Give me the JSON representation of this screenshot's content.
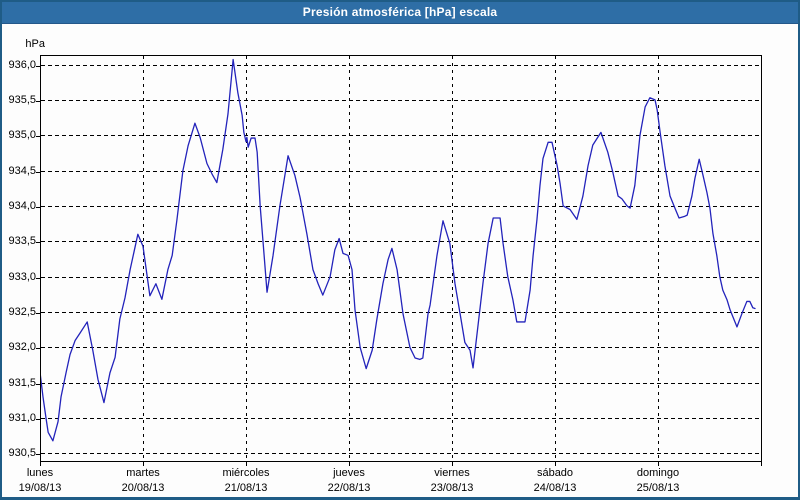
{
  "window": {
    "title": "Presión atmosférica [hPa] escala"
  },
  "colors": {
    "titlebar": "#2e6ea6",
    "frame": "#1f5c86",
    "line": "#2323bb",
    "grid": "#000000",
    "plot_border": "#000000"
  },
  "chart_data": {
    "type": "line",
    "title": "Presión atmosférica [hPa] escala",
    "ylabel": "hPa",
    "ylim": [
      930.5,
      936.0
    ],
    "ytick_step": 0.5,
    "ytick_labels": [
      "936,0",
      "935,5",
      "935,0",
      "934,5",
      "934,0",
      "933,5",
      "933,0",
      "932,5",
      "932,0",
      "931,5",
      "931,0",
      "930,5"
    ],
    "grid": true,
    "legend_position": "none",
    "x_unit": "hours since Monday 00:00",
    "xlim": [
      0,
      168
    ],
    "x_day_ticks_hours": [
      0,
      24,
      48,
      72,
      96,
      120,
      144,
      168
    ],
    "x_labels": [
      {
        "day": "lunes",
        "date": "19/08/13"
      },
      {
        "day": "martes",
        "date": "20/08/13"
      },
      {
        "day": "miércoles",
        "date": "21/08/13"
      },
      {
        "day": "jueves",
        "date": "22/08/13"
      },
      {
        "day": "viernes",
        "date": "23/08/13"
      },
      {
        "day": "sábado",
        "date": "24/08/13"
      },
      {
        "day": "domingo",
        "date": "25/08/13"
      }
    ],
    "series": [
      {
        "name": "Presión atmosférica",
        "color": "#2323bb",
        "points": [
          [
            0.0,
            931.65
          ],
          [
            0.7,
            931.3
          ],
          [
            1.4,
            931.0
          ],
          [
            1.9,
            930.8
          ],
          [
            3.0,
            930.68
          ],
          [
            4.2,
            930.95
          ],
          [
            4.9,
            931.3
          ],
          [
            6.1,
            931.65
          ],
          [
            7.0,
            931.9
          ],
          [
            8.2,
            932.1
          ],
          [
            9.3,
            932.2
          ],
          [
            11.0,
            932.36
          ],
          [
            12.3,
            931.96
          ],
          [
            13.5,
            931.55
          ],
          [
            14.9,
            931.22
          ],
          [
            16.3,
            931.64
          ],
          [
            17.5,
            931.86
          ],
          [
            18.6,
            932.4
          ],
          [
            19.8,
            932.7
          ],
          [
            21.0,
            933.1
          ],
          [
            21.9,
            933.35
          ],
          [
            22.8,
            933.6
          ],
          [
            24.0,
            933.43
          ],
          [
            25.6,
            932.73
          ],
          [
            27.0,
            932.9
          ],
          [
            28.4,
            932.68
          ],
          [
            29.8,
            933.1
          ],
          [
            30.8,
            933.3
          ],
          [
            31.9,
            933.8
          ],
          [
            33.3,
            934.5
          ],
          [
            34.5,
            934.85
          ],
          [
            36.1,
            935.17
          ],
          [
            37.3,
            934.97
          ],
          [
            38.9,
            934.6
          ],
          [
            40.1,
            934.45
          ],
          [
            41.2,
            934.33
          ],
          [
            42.6,
            934.8
          ],
          [
            43.8,
            935.3
          ],
          [
            45.0,
            936.07
          ],
          [
            46.1,
            935.6
          ],
          [
            47.1,
            935.28
          ],
          [
            47.5,
            935.04
          ],
          [
            48.0,
            934.91
          ],
          [
            48.2,
            934.97
          ],
          [
            48.5,
            934.83
          ],
          [
            49.2,
            934.96
          ],
          [
            50.1,
            934.96
          ],
          [
            50.6,
            934.76
          ],
          [
            51.3,
            934.0
          ],
          [
            52.0,
            933.47
          ],
          [
            52.9,
            932.78
          ],
          [
            54.3,
            933.3
          ],
          [
            55.9,
            934.0
          ],
          [
            57.8,
            934.71
          ],
          [
            59.4,
            934.43
          ],
          [
            60.6,
            934.12
          ],
          [
            62.2,
            933.6
          ],
          [
            63.6,
            933.1
          ],
          [
            64.8,
            932.9
          ],
          [
            65.9,
            932.74
          ],
          [
            67.6,
            933.0
          ],
          [
            68.7,
            933.38
          ],
          [
            69.7,
            933.54
          ],
          [
            70.6,
            933.33
          ],
          [
            71.8,
            933.3
          ],
          [
            72.7,
            933.1
          ],
          [
            73.4,
            932.53
          ],
          [
            74.6,
            932.0
          ],
          [
            76.0,
            931.7
          ],
          [
            77.4,
            931.96
          ],
          [
            78.5,
            932.4
          ],
          [
            79.9,
            932.9
          ],
          [
            81.1,
            933.24
          ],
          [
            82.0,
            933.4
          ],
          [
            83.2,
            933.1
          ],
          [
            84.6,
            932.47
          ],
          [
            86.2,
            932.0
          ],
          [
            87.4,
            931.85
          ],
          [
            88.5,
            931.83
          ],
          [
            89.2,
            931.85
          ],
          [
            90.4,
            932.47
          ],
          [
            90.9,
            932.6
          ],
          [
            92.5,
            933.3
          ],
          [
            93.9,
            933.79
          ],
          [
            95.5,
            933.47
          ],
          [
            96.7,
            932.9
          ],
          [
            97.9,
            932.47
          ],
          [
            99.0,
            932.07
          ],
          [
            100.2,
            931.96
          ],
          [
            100.9,
            931.71
          ],
          [
            102.1,
            932.33
          ],
          [
            103.2,
            932.9
          ],
          [
            104.4,
            933.47
          ],
          [
            105.6,
            933.83
          ],
          [
            107.2,
            933.83
          ],
          [
            107.9,
            933.47
          ],
          [
            109.0,
            933.0
          ],
          [
            110.2,
            932.67
          ],
          [
            111.1,
            932.36
          ],
          [
            113.0,
            932.36
          ],
          [
            114.2,
            932.81
          ],
          [
            114.9,
            933.3
          ],
          [
            115.8,
            933.81
          ],
          [
            116.5,
            934.29
          ],
          [
            117.2,
            934.67
          ],
          [
            118.4,
            934.9
          ],
          [
            119.3,
            934.9
          ],
          [
            120.5,
            934.57
          ],
          [
            121.2,
            934.31
          ],
          [
            121.9,
            934.0
          ],
          [
            123.5,
            933.95
          ],
          [
            125.1,
            933.81
          ],
          [
            126.5,
            934.14
          ],
          [
            127.7,
            934.57
          ],
          [
            128.8,
            934.86
          ],
          [
            130.7,
            935.04
          ],
          [
            132.3,
            934.76
          ],
          [
            133.5,
            934.47
          ],
          [
            134.7,
            934.14
          ],
          [
            135.6,
            934.1
          ],
          [
            136.8,
            934.0
          ],
          [
            137.5,
            933.97
          ],
          [
            138.6,
            934.29
          ],
          [
            139.8,
            935.0
          ],
          [
            141.0,
            935.4
          ],
          [
            142.1,
            935.53
          ],
          [
            143.3,
            935.5
          ],
          [
            143.8,
            935.36
          ],
          [
            144.5,
            935.04
          ],
          [
            145.6,
            934.57
          ],
          [
            146.8,
            934.14
          ],
          [
            148.0,
            933.96
          ],
          [
            148.9,
            933.83
          ],
          [
            150.1,
            933.85
          ],
          [
            150.8,
            933.87
          ],
          [
            151.9,
            934.14
          ],
          [
            152.6,
            934.39
          ],
          [
            153.6,
            934.66
          ],
          [
            154.5,
            934.43
          ],
          [
            155.4,
            934.19
          ],
          [
            156.1,
            933.97
          ],
          [
            156.8,
            933.61
          ],
          [
            157.7,
            933.3
          ],
          [
            158.4,
            933.0
          ],
          [
            159.1,
            932.81
          ],
          [
            160.1,
            932.67
          ],
          [
            160.8,
            932.53
          ],
          [
            162.4,
            932.29
          ],
          [
            163.5,
            932.47
          ],
          [
            164.7,
            932.65
          ],
          [
            165.4,
            932.65
          ],
          [
            166.1,
            932.56
          ],
          [
            166.6,
            932.55
          ]
        ]
      }
    ]
  }
}
